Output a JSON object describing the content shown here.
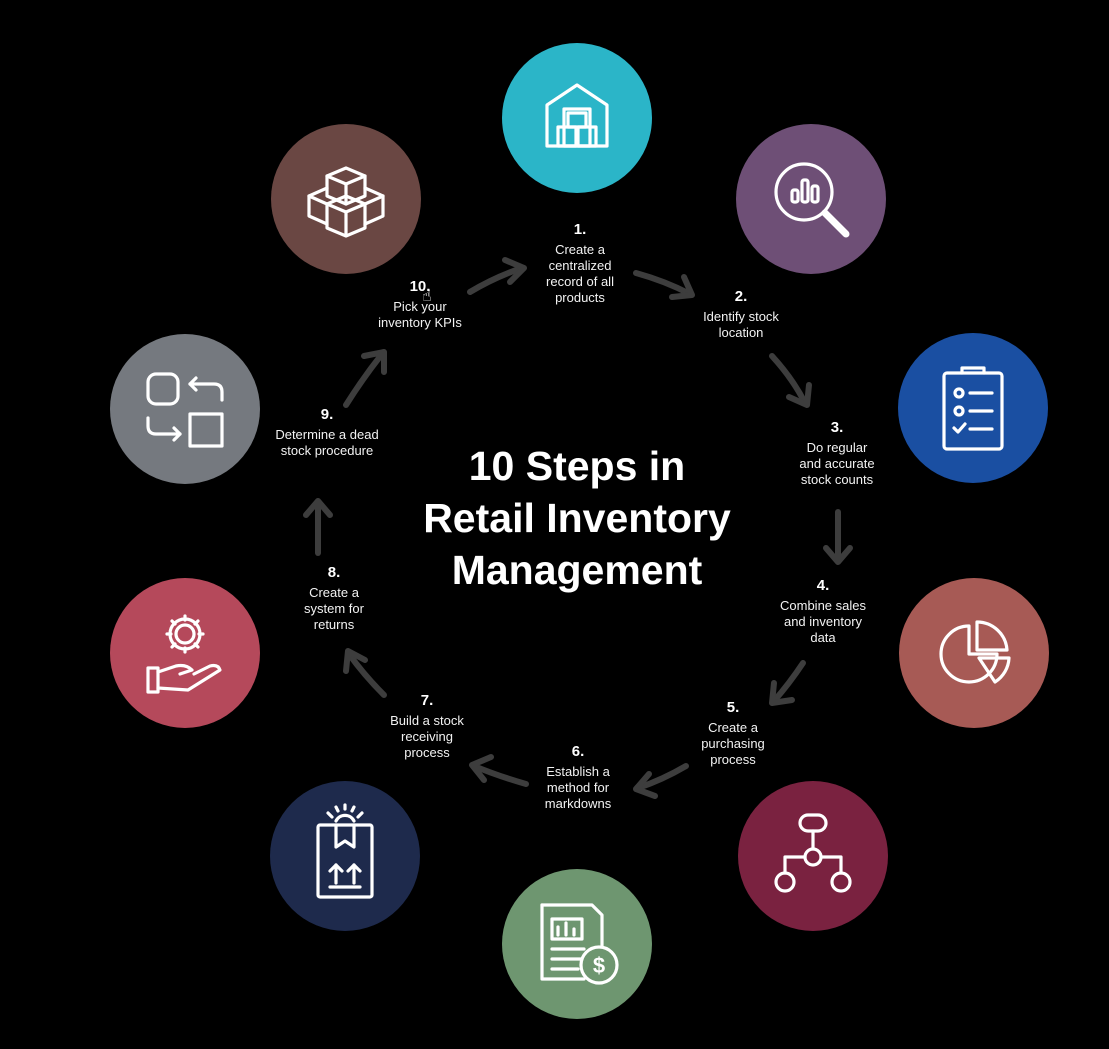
{
  "title_lines": [
    "10 Steps in",
    "Retail Inventory",
    "Management"
  ],
  "steps": [
    {
      "number": "1.",
      "text": "Create a centralized record of all products",
      "icon": "warehouse-icon",
      "color": "#2bb5c8"
    },
    {
      "number": "2.",
      "text": "Identify stock location",
      "icon": "magnifier-chart-icon",
      "color": "#6e4f76"
    },
    {
      "number": "3.",
      "text": "Do regular and accurate stock counts",
      "icon": "clipboard-checklist-icon",
      "color": "#1a4fa2"
    },
    {
      "number": "4.",
      "text": "Combine sales and inventory data",
      "icon": "pie-chart-icon",
      "color": "#a75a55"
    },
    {
      "number": "5.",
      "text": "Create a purchasing process",
      "icon": "flowchart-icon",
      "color": "#7a2240"
    },
    {
      "number": "6.",
      "text": "Establish a method for markdowns",
      "icon": "invoice-dollar-icon",
      "color": "#6e9670"
    },
    {
      "number": "7.",
      "text": "Build a stock receiving process",
      "icon": "package-gear-icon",
      "color": "#1e2a4c"
    },
    {
      "number": "8.",
      "text": "Create a system for returns",
      "icon": "hand-gear-icon",
      "color": "#b5495b"
    },
    {
      "number": "9.",
      "text": "Determine a dead stock procedure",
      "icon": "swap-shapes-icon",
      "color": "#75797f"
    },
    {
      "number": "10.",
      "text": "Pick your inventory KPIs",
      "icon": "stacked-boxes-icon",
      "color": "#6a4743"
    }
  ]
}
